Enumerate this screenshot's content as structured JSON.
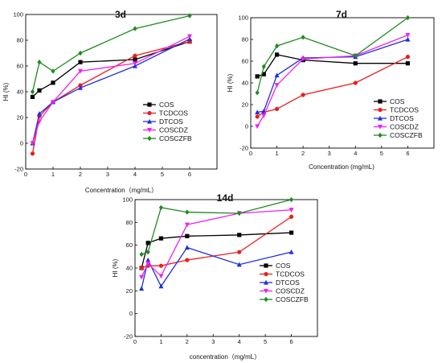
{
  "chart_data": [
    {
      "type": "line",
      "title": "3d",
      "xlabel": "Concentration（mg/mL）",
      "ylabel": "HI (%)",
      "xlim": [
        0,
        7
      ],
      "ylim": [
        -20,
        100
      ],
      "xticks": [
        "0",
        "1",
        "2",
        "3",
        "4",
        "5",
        "6"
      ],
      "yticks": [
        "-20",
        "0",
        "20",
        "40",
        "60",
        "80",
        "100"
      ],
      "x": [
        0.25,
        0.5,
        1,
        2,
        4,
        6
      ],
      "legend": "inside-lower-right",
      "series": [
        {
          "name": "COS",
          "color": "#000000",
          "marker": "square",
          "values": [
            36,
            41,
            47,
            63,
            65,
            79
          ]
        },
        {
          "name": "TCDCOS",
          "color": "#ee1c1c",
          "marker": "circle",
          "values": [
            -8,
            21,
            32,
            45,
            68,
            79
          ]
        },
        {
          "name": "DTCOS",
          "color": "#1f2fdc",
          "marker": "triangle-up",
          "values": [
            0,
            23,
            32,
            43,
            60,
            81
          ]
        },
        {
          "name": "COSCDZ",
          "color": "#ee22ee",
          "marker": "triangle-down",
          "values": [
            0,
            17,
            32,
            56,
            62,
            83
          ]
        },
        {
          "name": "COSCZFB",
          "color": "#1f8a1f",
          "marker": "diamond",
          "values": [
            40,
            63,
            56,
            70,
            89,
            99
          ]
        }
      ]
    },
    {
      "type": "line",
      "title": "7d",
      "xlabel": "Concentration (mg/mL)",
      "ylabel": "HI (%)",
      "xlim": [
        0,
        7
      ],
      "ylim": [
        -20,
        100
      ],
      "xticks": [
        "0",
        "1",
        "2",
        "3",
        "4",
        "5",
        "6"
      ],
      "yticks": [
        "-20",
        "0",
        "20",
        "40",
        "60",
        "80",
        "100"
      ],
      "x": [
        0.25,
        0.5,
        1,
        2,
        4,
        6
      ],
      "legend": "outside-lower-right",
      "series": [
        {
          "name": "COS",
          "color": "#000000",
          "marker": "square",
          "values": [
            46,
            48,
            66,
            61,
            58,
            58
          ]
        },
        {
          "name": "TCDCOS",
          "color": "#ee1c1c",
          "marker": "circle",
          "values": [
            9,
            13,
            16,
            29,
            40,
            64
          ]
        },
        {
          "name": "DTCOS",
          "color": "#1f2fdc",
          "marker": "triangle-up",
          "values": [
            13,
            14,
            47,
            63,
            64,
            80
          ]
        },
        {
          "name": "COSCDZ",
          "color": "#ee22ee",
          "marker": "triangle-down",
          "values": [
            0,
            10,
            38,
            62,
            65,
            84
          ]
        },
        {
          "name": "COSCZFB",
          "color": "#1f8a1f",
          "marker": "diamond",
          "values": [
            31,
            55,
            74,
            82,
            65,
            100
          ]
        }
      ]
    },
    {
      "type": "line",
      "title": "14d",
      "xlabel": "concentration（mg/mL）",
      "ylabel": "HI (%)",
      "xlim": [
        0,
        7
      ],
      "ylim": [
        -20,
        100
      ],
      "xticks": [
        "0",
        "1",
        "2",
        "3",
        "4",
        "5",
        "6"
      ],
      "yticks": [
        "-20",
        "0",
        "20",
        "40",
        "60",
        "80",
        "100"
      ],
      "x": [
        0.25,
        0.5,
        1,
        2,
        4,
        6
      ],
      "legend": "outside-lower-right",
      "series": [
        {
          "name": "COS",
          "color": "#000000",
          "marker": "square",
          "values": [
            40,
            62,
            66,
            68,
            69,
            71
          ]
        },
        {
          "name": "TCDCOS",
          "color": "#ee1c1c",
          "marker": "circle",
          "values": [
            40,
            42,
            42,
            47,
            54,
            85
          ]
        },
        {
          "name": "DTCOS",
          "color": "#1f2fdc",
          "marker": "triangle-up",
          "values": [
            22,
            47,
            24,
            58,
            43,
            54
          ]
        },
        {
          "name": "COSCDZ",
          "color": "#ee22ee",
          "marker": "triangle-down",
          "values": [
            32,
            44,
            33,
            78,
            88,
            91
          ]
        },
        {
          "name": "COSCZFB",
          "color": "#1f8a1f",
          "marker": "diamond",
          "values": [
            52,
            54,
            93,
            89,
            88,
            100
          ]
        }
      ]
    }
  ]
}
